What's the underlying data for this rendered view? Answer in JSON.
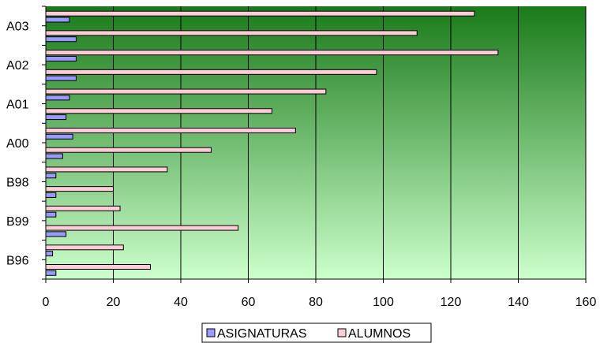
{
  "chart_data": {
    "type": "bar",
    "orientation": "horizontal",
    "categories_bottom_to_top": [
      "B96",
      "",
      "B99",
      "",
      "B98",
      "",
      "A00",
      "",
      "A01",
      "",
      "A02",
      "",
      "A03",
      ""
    ],
    "category_labels": [
      "B96",
      "B99",
      "B98",
      "A00",
      "A01",
      "A02",
      "A03"
    ],
    "series": [
      {
        "name": "ASIGNATURAS",
        "values": [
          3,
          2,
          6,
          3,
          3,
          3,
          5,
          8,
          6,
          7,
          9,
          9,
          9,
          7
        ]
      },
      {
        "name": "ALUMNOS",
        "values": [
          31,
          23,
          57,
          22,
          20,
          36,
          49,
          74,
          67,
          83,
          98,
          134,
          110,
          127
        ]
      }
    ],
    "xlim": [
      0,
      160
    ],
    "x_ticks": [
      "0",
      "20",
      "40",
      "60",
      "80",
      "100",
      "120",
      "140",
      "160"
    ],
    "grid": "vertical",
    "legend_position": "bottom",
    "colors": {
      "asignaturas": "#9999ff",
      "alumnos": "#ffccd8",
      "plot_top": "#1a7a1a",
      "plot_bottom": "#ccffcc"
    }
  }
}
